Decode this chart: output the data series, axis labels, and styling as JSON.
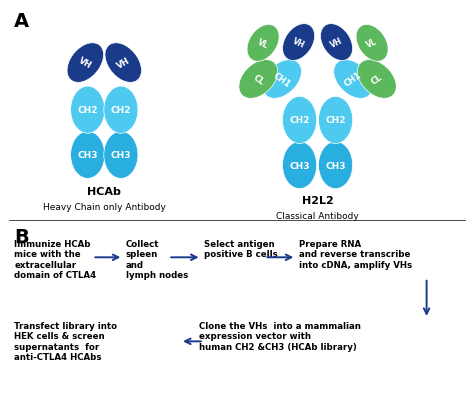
{
  "dark_blue": "#1a3a8a",
  "light_cyan": "#4ec9f0",
  "medium_cyan": "#29aee0",
  "dark_cyan": "#1a7ab5",
  "green_bright": "#5cb85c",
  "green_dark": "#3a8a3a",
  "arrow_color": "#1a3a8a",
  "label_A": "A",
  "label_B": "B",
  "hcab_title": "HCAb",
  "hcab_subtitle": "Heavy Chain only Antibody",
  "h2l2_title": "H2L2",
  "h2l2_subtitle": "Classical Antibody",
  "step1": "Immunize HCAb\nmice with the\nextracellular\ndomain of CTLA4",
  "step2": "Collect\nspleen\nand\nlymph nodes",
  "step3": "Select antigen\npositive B cells",
  "step4": "Prepare RNA\nand reverse transcribe\ninto cDNA, amplify VHs",
  "step5": "Clone the VHs  into a mammalian\nexpression vector with\nhuman CH2 &CH3 (HCAb library)",
  "step6": "Transfect library into\nHEK cells & screen\nsupernatants  for\nanti-CTLA4 HCAbs"
}
